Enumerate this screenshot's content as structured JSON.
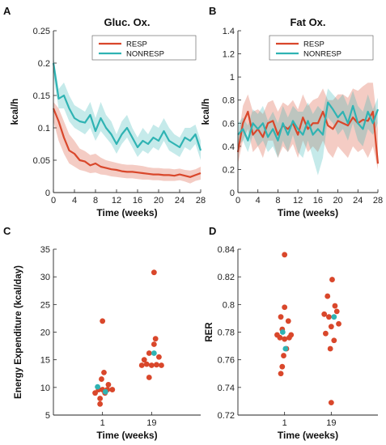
{
  "chart_data": [
    {
      "panel": "A",
      "type": "line",
      "title": "Gluc. Ox.",
      "xlabel": "Time (weeks)",
      "ylabel": "kcal/h",
      "xlim": [
        0,
        28
      ],
      "ylim": [
        0,
        0.25
      ],
      "xticks": [
        0,
        4,
        8,
        12,
        16,
        20,
        24,
        28
      ],
      "yticks": [
        0,
        0.05,
        0.1,
        0.15,
        0.2,
        0.25
      ],
      "ytick_labels": [
        "0",
        "0.05",
        "0.1",
        "0.15",
        "0.2",
        "0.25"
      ],
      "legend": "top-right",
      "x": [
        0,
        1,
        2,
        3,
        4,
        5,
        6,
        7,
        8,
        9,
        10,
        11,
        12,
        13,
        14,
        15,
        16,
        17,
        18,
        19,
        20,
        21,
        22,
        23,
        24,
        25,
        26,
        27,
        28
      ],
      "series": [
        {
          "name": "RESP",
          "color": "#d9472b",
          "values": [
            0.13,
            0.11,
            0.085,
            0.065,
            0.06,
            0.05,
            0.048,
            0.042,
            0.045,
            0.04,
            0.038,
            0.036,
            0.035,
            0.033,
            0.032,
            0.032,
            0.031,
            0.03,
            0.029,
            0.028,
            0.028,
            0.027,
            0.027,
            0.026,
            0.028,
            0.026,
            0.024,
            0.027,
            0.03
          ],
          "lower": [
            0.11,
            0.08,
            0.06,
            0.045,
            0.04,
            0.035,
            0.033,
            0.03,
            0.031,
            0.028,
            0.027,
            0.025,
            0.024,
            0.023,
            0.022,
            0.022,
            0.021,
            0.02,
            0.02,
            0.019,
            0.019,
            0.018,
            0.018,
            0.018,
            0.019,
            0.017,
            0.014,
            0.018,
            0.02
          ],
          "upper": [
            0.14,
            0.13,
            0.11,
            0.09,
            0.08,
            0.068,
            0.064,
            0.058,
            0.06,
            0.054,
            0.05,
            0.048,
            0.046,
            0.044,
            0.043,
            0.043,
            0.042,
            0.041,
            0.039,
            0.038,
            0.038,
            0.037,
            0.037,
            0.036,
            0.037,
            0.035,
            0.034,
            0.036,
            0.04
          ]
        },
        {
          "name": "NONRESP",
          "color": "#2fb3b3",
          "values": [
            0.2,
            0.145,
            0.15,
            0.13,
            0.115,
            0.11,
            0.108,
            0.12,
            0.095,
            0.115,
            0.1,
            0.09,
            0.075,
            0.09,
            0.1,
            0.085,
            0.07,
            0.08,
            0.075,
            0.085,
            0.08,
            0.095,
            0.08,
            0.075,
            0.07,
            0.085,
            0.08,
            0.09,
            0.065
          ],
          "lower": [
            0.18,
            0.13,
            0.13,
            0.11,
            0.1,
            0.095,
            0.09,
            0.1,
            0.08,
            0.095,
            0.085,
            0.075,
            0.06,
            0.075,
            0.085,
            0.07,
            0.055,
            0.065,
            0.06,
            0.07,
            0.065,
            0.08,
            0.065,
            0.06,
            0.055,
            0.07,
            0.065,
            0.075,
            0.05
          ],
          "upper": [
            0.21,
            0.16,
            0.17,
            0.15,
            0.135,
            0.13,
            0.125,
            0.14,
            0.115,
            0.14,
            0.12,
            0.11,
            0.09,
            0.11,
            0.12,
            0.1,
            0.085,
            0.1,
            0.09,
            0.105,
            0.1,
            0.115,
            0.1,
            0.09,
            0.085,
            0.1,
            0.1,
            0.105,
            0.08
          ]
        }
      ]
    },
    {
      "panel": "B",
      "type": "line",
      "title": "Fat Ox.",
      "xlabel": "Time (weeks)",
      "ylabel": "kcal/h",
      "xlim": [
        0,
        28
      ],
      "ylim": [
        0,
        1.4
      ],
      "xticks": [
        0,
        4,
        8,
        12,
        16,
        20,
        24,
        28
      ],
      "yticks": [
        0,
        0.2,
        0.4,
        0.6,
        0.8,
        1,
        1.2,
        1.4
      ],
      "ytick_labels": [
        "0",
        "0.2",
        "0.4",
        "0.6",
        "0.8",
        "1",
        "1.2",
        "1.4"
      ],
      "legend": "top-right",
      "x": [
        0,
        1,
        2,
        3,
        4,
        5,
        6,
        7,
        8,
        9,
        10,
        11,
        12,
        13,
        14,
        15,
        16,
        17,
        18,
        19,
        20,
        21,
        22,
        23,
        24,
        25,
        26,
        27,
        28
      ],
      "series": [
        {
          "name": "RESP",
          "color": "#d9472b",
          "values": [
            0.35,
            0.6,
            0.7,
            0.5,
            0.55,
            0.48,
            0.6,
            0.62,
            0.5,
            0.58,
            0.55,
            0.6,
            0.5,
            0.65,
            0.55,
            0.6,
            0.6,
            0.7,
            0.58,
            0.55,
            0.62,
            0.6,
            0.58,
            0.65,
            0.6,
            0.63,
            0.62,
            0.7,
            0.25
          ],
          "lower": [
            0.25,
            0.45,
            0.55,
            0.35,
            0.4,
            0.3,
            0.45,
            0.45,
            0.3,
            0.4,
            0.35,
            0.42,
            0.3,
            0.45,
            0.35,
            0.4,
            0.35,
            0.45,
            0.35,
            0.3,
            0.4,
            0.35,
            0.3,
            0.4,
            0.35,
            0.38,
            0.3,
            0.4,
            0.2
          ],
          "upper": [
            0.45,
            0.75,
            0.85,
            0.7,
            0.72,
            0.68,
            0.78,
            0.8,
            0.7,
            0.78,
            0.75,
            0.8,
            0.72,
            0.85,
            0.75,
            0.8,
            0.82,
            0.9,
            0.8,
            0.8,
            0.85,
            0.85,
            0.82,
            0.9,
            0.88,
            0.92,
            0.95,
            0.95,
            0.55
          ]
        },
        {
          "name": "NONRESP",
          "color": "#2fb3b3",
          "values": [
            0.5,
            0.55,
            0.45,
            0.6,
            0.55,
            0.6,
            0.48,
            0.55,
            0.45,
            0.6,
            0.5,
            0.62,
            0.55,
            0.5,
            0.62,
            0.5,
            0.55,
            0.5,
            0.78,
            0.72,
            0.65,
            0.7,
            0.6,
            0.75,
            0.6,
            0.55,
            0.7,
            0.6,
            0.72
          ],
          "lower": [
            0.4,
            0.45,
            0.35,
            0.5,
            0.4,
            0.45,
            0.35,
            0.4,
            0.3,
            0.45,
            0.35,
            0.5,
            0.35,
            0.3,
            0.45,
            0.3,
            0.15,
            0.3,
            0.65,
            0.6,
            0.5,
            0.55,
            0.45,
            0.6,
            0.45,
            0.4,
            0.55,
            0.5,
            0.6
          ],
          "upper": [
            0.6,
            0.65,
            0.58,
            0.72,
            0.68,
            0.75,
            0.62,
            0.7,
            0.6,
            0.75,
            0.65,
            0.75,
            0.7,
            0.7,
            0.78,
            0.68,
            0.75,
            0.7,
            0.9,
            0.85,
            0.8,
            0.85,
            0.75,
            0.88,
            0.75,
            0.7,
            0.85,
            0.72,
            0.82
          ]
        }
      ]
    },
    {
      "panel": "C",
      "type": "scatter",
      "xlabel": "Time (weeks)",
      "ylabel": "Energy Expenditure (kcal/day)",
      "categories": [
        "1",
        "19"
      ],
      "xlim": [
        0,
        3
      ],
      "ylim": [
        5,
        35
      ],
      "yticks": [
        5,
        10,
        15,
        20,
        25,
        30,
        35
      ],
      "series": [
        {
          "name": "RESP",
          "color": "#d9472b",
          "points": [
            {
              "category": "1",
              "offset": -0.08,
              "value": 9.6
            },
            {
              "category": "1",
              "offset": 0.0,
              "value": 9.6
            },
            {
              "category": "1",
              "offset": 0.1,
              "value": 9.6
            },
            {
              "category": "1",
              "offset": 0.2,
              "value": 9.6
            },
            {
              "category": "1",
              "offset": -0.15,
              "value": 9.0
            },
            {
              "category": "1",
              "offset": 0.05,
              "value": 9.0
            },
            {
              "category": "1",
              "offset": -0.05,
              "value": 8.0
            },
            {
              "category": "1",
              "offset": 0.12,
              "value": 10.5
            },
            {
              "category": "1",
              "offset": -0.02,
              "value": 11.5
            },
            {
              "category": "1",
              "offset": 0.03,
              "value": 12.7
            },
            {
              "category": "1",
              "offset": 0.0,
              "value": 22.0
            },
            {
              "category": "1",
              "offset": -0.05,
              "value": 7.0
            },
            {
              "category": "19",
              "offset": -0.2,
              "value": 14.0
            },
            {
              "category": "19",
              "offset": -0.1,
              "value": 14.2
            },
            {
              "category": "19",
              "offset": 0.0,
              "value": 14.0
            },
            {
              "category": "19",
              "offset": 0.1,
              "value": 14.1
            },
            {
              "category": "19",
              "offset": 0.2,
              "value": 14.0
            },
            {
              "category": "19",
              "offset": -0.15,
              "value": 15.0
            },
            {
              "category": "19",
              "offset": 0.15,
              "value": 15.5
            },
            {
              "category": "19",
              "offset": -0.05,
              "value": 16.2
            },
            {
              "category": "19",
              "offset": 0.05,
              "value": 17.8
            },
            {
              "category": "19",
              "offset": 0.08,
              "value": 18.8
            },
            {
              "category": "19",
              "offset": -0.05,
              "value": 11.8
            },
            {
              "category": "19",
              "offset": 0.05,
              "value": 30.8
            }
          ]
        },
        {
          "name": "NONRESP",
          "color": "#2fb3b3",
          "points": [
            {
              "category": "1",
              "offset": -0.1,
              "value": 10.1
            },
            {
              "category": "1",
              "offset": 0.06,
              "value": 9.2
            },
            {
              "category": "19",
              "offset": 0.05,
              "value": 16.2
            }
          ]
        }
      ]
    },
    {
      "panel": "D",
      "type": "scatter",
      "xlabel": "Time (weeks)",
      "ylabel": "RER",
      "categories": [
        "1",
        "19"
      ],
      "xlim": [
        0,
        3
      ],
      "ylim": [
        0.72,
        0.84
      ],
      "yticks": [
        0.72,
        0.74,
        0.76,
        0.78,
        0.8,
        0.82,
        0.84
      ],
      "ytick_labels": [
        "0.72",
        "0.74",
        "0.76",
        "0.78",
        "0.8",
        "0.82",
        "0.84"
      ],
      "series": [
        {
          "name": "RESP",
          "color": "#d9472b",
          "points": [
            {
              "category": "1",
              "offset": 0.0,
              "value": 0.836
            },
            {
              "category": "1",
              "offset": 0.0,
              "value": 0.798
            },
            {
              "category": "1",
              "offset": -0.08,
              "value": 0.791
            },
            {
              "category": "1",
              "offset": 0.08,
              "value": 0.788
            },
            {
              "category": "1",
              "offset": -0.05,
              "value": 0.782
            },
            {
              "category": "1",
              "offset": -0.16,
              "value": 0.778
            },
            {
              "category": "1",
              "offset": 0.14,
              "value": 0.778
            },
            {
              "category": "1",
              "offset": -0.1,
              "value": 0.776
            },
            {
              "category": "1",
              "offset": 0.1,
              "value": 0.776
            },
            {
              "category": "1",
              "offset": 0.0,
              "value": 0.775
            },
            {
              "category": "1",
              "offset": 0.04,
              "value": 0.768
            },
            {
              "category": "1",
              "offset": -0.02,
              "value": 0.763
            },
            {
              "category": "1",
              "offset": -0.05,
              "value": 0.755
            },
            {
              "category": "1",
              "offset": -0.08,
              "value": 0.75
            },
            {
              "category": "19",
              "offset": 0.02,
              "value": 0.818
            },
            {
              "category": "19",
              "offset": -0.08,
              "value": 0.806
            },
            {
              "category": "19",
              "offset": 0.08,
              "value": 0.799
            },
            {
              "category": "19",
              "offset": -0.15,
              "value": 0.793
            },
            {
              "category": "19",
              "offset": 0.12,
              "value": 0.795
            },
            {
              "category": "19",
              "offset": -0.05,
              "value": 0.791
            },
            {
              "category": "19",
              "offset": 0.16,
              "value": 0.786
            },
            {
              "category": "19",
              "offset": 0.0,
              "value": 0.784
            },
            {
              "category": "19",
              "offset": -0.12,
              "value": 0.779
            },
            {
              "category": "19",
              "offset": 0.06,
              "value": 0.774
            },
            {
              "category": "19",
              "offset": -0.02,
              "value": 0.768
            },
            {
              "category": "19",
              "offset": 0.0,
              "value": 0.729
            }
          ]
        },
        {
          "name": "NONRESP",
          "color": "#2fb3b3",
          "points": [
            {
              "category": "1",
              "offset": -0.04,
              "value": 0.78
            },
            {
              "category": "1",
              "offset": 0.02,
              "value": 0.768
            },
            {
              "category": "19",
              "offset": 0.06,
              "value": 0.791
            }
          ]
        }
      ]
    }
  ]
}
